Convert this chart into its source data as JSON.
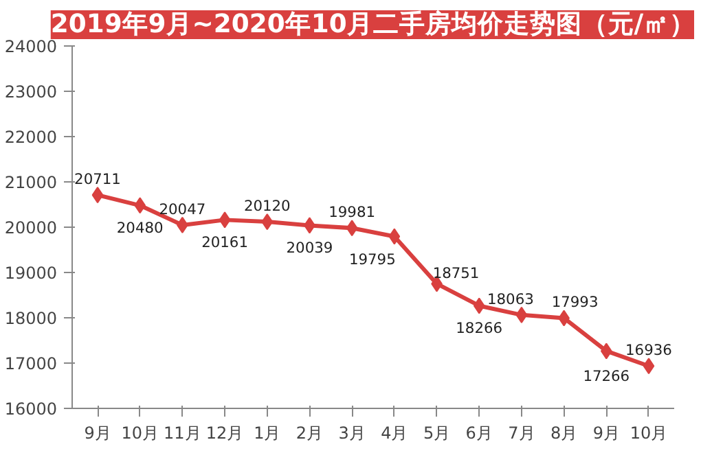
{
  "chart_data": {
    "type": "line",
    "title": "2019年9月~2020年10月二手房均价走势图（元/㎡）",
    "categories": [
      "9月",
      "10月",
      "11月",
      "12月",
      "1月",
      "2月",
      "3月",
      "4月",
      "5月",
      "6月",
      "7月",
      "8月",
      "9月",
      "10月"
    ],
    "series": [
      {
        "color": "#d9403f",
        "values": [
          20711,
          20480,
          20047,
          20161,
          20120,
          20039,
          19981,
          19795,
          18751,
          18266,
          18063,
          17993,
          17266,
          16936
        ]
      }
    ],
    "ylim": [
      16000,
      24000
    ],
    "yticks": [
      16000,
      17000,
      18000,
      19000,
      20000,
      21000,
      22000,
      23000,
      24000
    ],
    "grid": false,
    "marker": "diamond",
    "line_style": "solid",
    "data_labels": true
  }
}
